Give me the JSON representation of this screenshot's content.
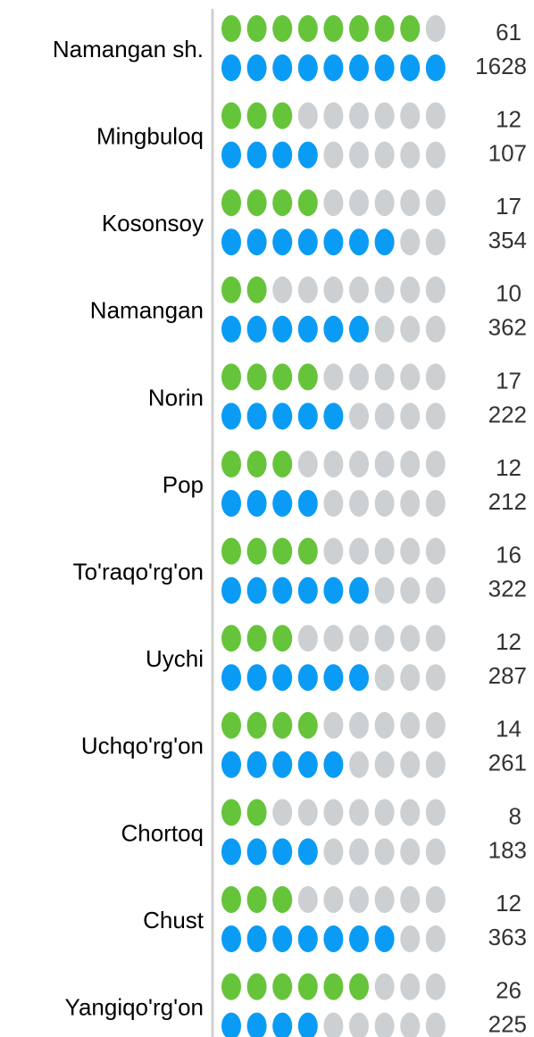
{
  "chart_data": {
    "type": "pictogram",
    "categories": [
      "Namangan sh.",
      "Mingbuloq",
      "Kosonsoy",
      "Namangan",
      "Norin",
      "Pop",
      "To'raqo'rg'on",
      "Uychi",
      "Uchqo'rg'on",
      "Chortoq",
      "Chust",
      "Yangiqo'rg'on"
    ],
    "dot_count": 9,
    "empty_color": "#cdd0d2",
    "series": [
      {
        "color": "#66c43a",
        "values": [
          61,
          12,
          17,
          10,
          17,
          12,
          16,
          12,
          14,
          8,
          12,
          26
        ],
        "filled": [
          8,
          3,
          4,
          2,
          4,
          3,
          4,
          3,
          4,
          2,
          3,
          6
        ]
      },
      {
        "color": "#0a9cf5",
        "values": [
          1628,
          107,
          354,
          362,
          222,
          212,
          322,
          287,
          261,
          183,
          363,
          225
        ],
        "filled": [
          9,
          4,
          7,
          6,
          5,
          4,
          6,
          6,
          5,
          4,
          7,
          4
        ]
      }
    ]
  }
}
